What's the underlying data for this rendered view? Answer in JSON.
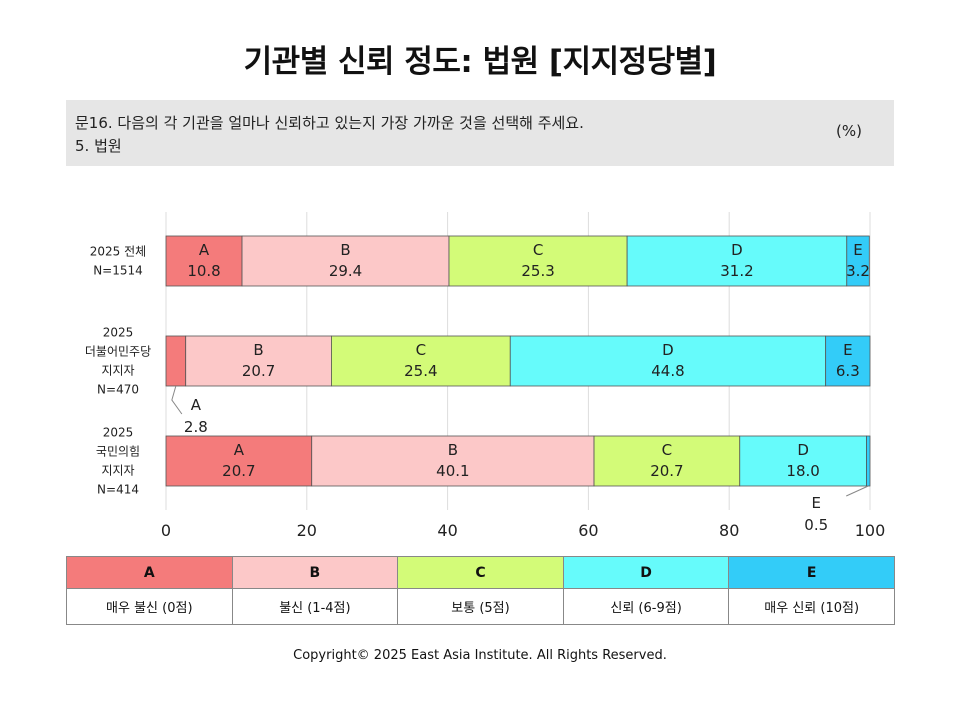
{
  "title": "기관별 신뢰 정도: 법원 [지지정당별]",
  "question": {
    "line1": "문16. 다음의 각 기관을 얼마나 신뢰하고 있는지 가장 가까운 것을 선택해 주세요.",
    "line2": "5. 법원",
    "unit": "(%)"
  },
  "chart_data": {
    "type": "bar",
    "orientation": "horizontal",
    "stacked": true,
    "x_ticks": [
      "0",
      "20",
      "40",
      "60",
      "80",
      "100"
    ],
    "xlim": [
      0,
      100
    ],
    "grid": true,
    "categories": [
      [
        "2025 전체",
        "N=1514"
      ],
      [
        "2025",
        "더불어민주당",
        "지지자",
        "N=470"
      ],
      [
        "2025",
        "국민의힘",
        "지지자",
        "N=414"
      ]
    ],
    "series": [
      {
        "name": "A",
        "color": "#f47b7b",
        "values": [
          10.8,
          2.8,
          20.7
        ]
      },
      {
        "name": "B",
        "color": "#fcc8c8",
        "values": [
          29.4,
          20.7,
          40.1
        ]
      },
      {
        "name": "C",
        "color": "#d3fb78",
        "values": [
          25.3,
          25.4,
          20.7
        ]
      },
      {
        "name": "D",
        "color": "#66fbfb",
        "values": [
          31.2,
          44.8,
          18.0
        ]
      },
      {
        "name": "E",
        "color": "#33ccf8",
        "values": [
          3.2,
          6.3,
          0.5
        ]
      }
    ]
  },
  "legend": [
    {
      "key": "A",
      "desc": "매우 불신 (0점)",
      "color": "#f47b7b"
    },
    {
      "key": "B",
      "desc": "불신 (1-4점)",
      "color": "#fcc8c8"
    },
    {
      "key": "C",
      "desc": "보통 (5점)",
      "color": "#d3fb78"
    },
    {
      "key": "D",
      "desc": "신뢰 (6-9점)",
      "color": "#66fbfb"
    },
    {
      "key": "E",
      "desc": "매우 신뢰 (10점)",
      "color": "#33ccf8"
    }
  ],
  "copyright": "Copyright© 2025 East Asia Institute. All Rights Reserved."
}
